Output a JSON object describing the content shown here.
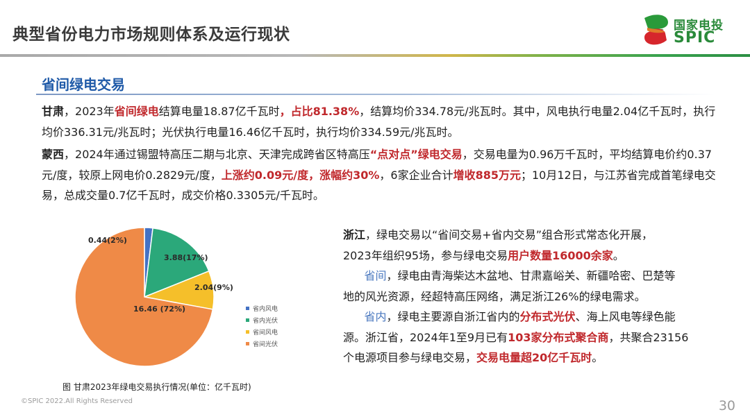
{
  "header": {
    "title": "典型省份电力市场规则体系及运行现状",
    "logo_cn": "国家电投",
    "logo_en": "SPIC"
  },
  "section": {
    "title": "省间绿电交易"
  },
  "gansu": {
    "lead": "甘肃",
    "t1": "，2023年",
    "r1": "省间绿电",
    "t2": "结算电量18.87亿千瓦时",
    "r2": "，占比81.38%",
    "t3": "，结算均价334.78元/兆瓦时。其中，风电执行电量2.04亿千瓦时，执行均价336.31元/兆瓦时；光伏执行电量16.46亿千瓦时，执行均价334.59元/兆瓦时。"
  },
  "mengxi": {
    "lead": "蒙西",
    "t1": "，2024年通过锡盟特高压二期与北京、天津完成跨省区特高压",
    "r1": "“点对点”绿电交易",
    "t2": "，交易电量为0.96万千瓦时，平均结算电价约0.37元/度，较原上网电价0.2829元/度，",
    "r2": "上涨约0.09元/度，涨幅约30%",
    "t3": "，6家企业合计",
    "r3": "增收885万元",
    "t4": "；10月12日，与江苏省完成首笔绿电交易，总成交量0.7亿千瓦时，成交价格0.3305元/千瓦时。"
  },
  "zhejiang": {
    "lead": "浙江",
    "l1": "，绿电交易以“省间交易+省内交易”组合形式常态化开展，",
    "l2a": "2023年组织95场，参与绿电交易",
    "l2r": "用户数量16000余家",
    "l2b": "。",
    "l3b": "省间",
    "l3": "，绿电由青海柴达木盆地、甘肃嘉峪关、新疆哈密、巴楚等",
    "l4": "地的风光资源，经超特高压网络，满足浙江26%的绿电需求。",
    "l5b": "省内",
    "l5a": "，绿电主要源自浙江省内的",
    "l5r": "分布式光伏",
    "l5c": "、海上风电等绿色能",
    "l6a": "源。浙江省，2024年1至9月已有",
    "l6r": "103家分布式聚合商",
    "l6b": "，共聚合23156",
    "l7a": "个电源项目参与绿电交易，",
    "l7r": "交易电量超20亿千瓦时",
    "l7b": "。"
  },
  "chart_data": {
    "type": "pie",
    "title": "",
    "categories": [
      "省内风电",
      "省内光伏",
      "省间风电",
      "省间光伏"
    ],
    "values": [
      0.44,
      3.88,
      2.04,
      16.46
    ],
    "labels": [
      "0.44(2%)",
      "3.88(17%)",
      "2.04(9%)",
      "16.46 (72%)"
    ],
    "colors": [
      "#4472c4",
      "#2ba87a",
      "#f5bf2a",
      "#ef8a47"
    ],
    "legend_position": "right"
  },
  "caption": "图 甘肃2023年绿电交易执行情况(单位：亿千瓦时)",
  "footer": "©SPIC 2022.All Rights Reserved",
  "page_number": "30"
}
